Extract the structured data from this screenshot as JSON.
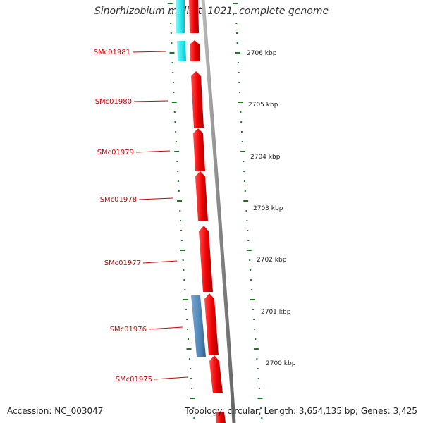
{
  "title": "Sinorhizobium meliloti 1021, complete genome",
  "accession_text": "Accession: NC_003047",
  "summary_text": "Topology: circular; Length: 3,654,135 bp; Genes: 3,425",
  "colors": {
    "forward_gene": "#ee0000",
    "reverse_gene_cyan": "#22e5ee",
    "reverse_gene_blue": "#4f86b8",
    "backbone": "#888888",
    "tick": "#1a7a1a",
    "label": "#cc0000"
  },
  "gene_labels": [
    "SMc01981",
    "SMc01980",
    "SMc01979",
    "SMc01978",
    "SMc01977",
    "SMc01976",
    "SMc01975"
  ],
  "position_ticks": [
    "2706 kbp",
    "2705 kbp",
    "2704 kbp",
    "2703 kbp",
    "2702 kbp",
    "2701 kbp",
    "2700 kbp"
  ]
}
